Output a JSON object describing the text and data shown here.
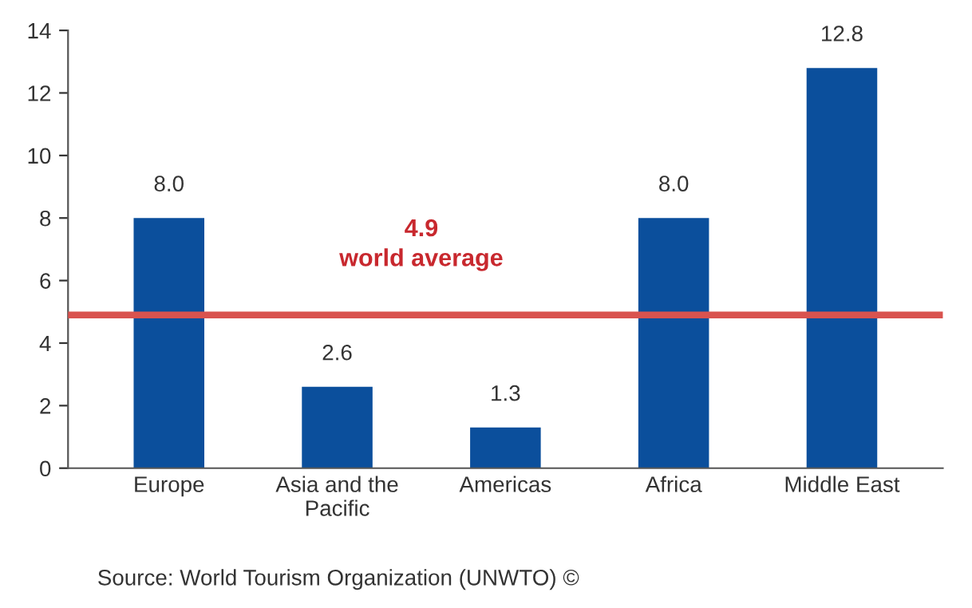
{
  "chart_data": {
    "type": "bar",
    "categories": [
      "Europe",
      "Asia and the\nPacific",
      "Americas",
      "Africa",
      "Middle East"
    ],
    "values": [
      8.0,
      2.6,
      1.3,
      8.0,
      12.8
    ],
    "color": "#0b4f9c",
    "value_labels": [
      "8.0",
      "2.6",
      "1.3",
      "8.0",
      "12.8"
    ],
    "ylim": [
      0,
      14
    ],
    "yticks": [
      0,
      2,
      4,
      6,
      8,
      10,
      12,
      14
    ],
    "grid": false,
    "legend": false,
    "ref_lines": [
      {
        "axis": "y",
        "value": 4.9,
        "label": "4.9\nworld average",
        "color": "#d9534f",
        "line_style": "solid"
      }
    ],
    "annotations": [
      "Source: World Tourism Organization (UNWTO) ©"
    ]
  }
}
